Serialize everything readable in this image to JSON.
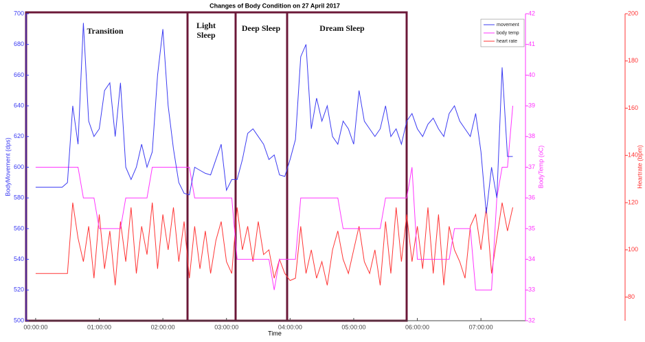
{
  "chart_data": {
    "type": "line",
    "title": "Changes of Body Condition on 27 April 2017",
    "xlabel": "Time",
    "ylabel": "BodyMovement (dps)",
    "y2label": "BodyTemp (oC)",
    "y3label": "Heartrate (bpm)",
    "x": [
      0,
      5,
      10,
      15,
      20,
      25,
      30,
      35,
      40,
      45,
      50,
      55,
      60,
      65,
      70,
      75,
      80,
      85,
      90,
      95,
      100,
      105,
      110,
      115,
      120,
      125,
      130,
      135,
      140,
      145,
      150,
      155,
      160,
      165,
      170,
      175,
      180,
      185,
      190,
      195,
      200,
      205,
      210,
      215,
      220,
      225,
      230,
      235,
      240,
      245,
      250,
      255,
      260,
      265,
      270,
      275,
      280,
      285,
      290,
      295,
      300,
      305,
      310,
      315,
      320,
      325,
      330,
      335,
      340,
      345,
      350,
      355,
      360,
      365,
      370,
      375,
      380,
      385,
      390,
      395,
      400,
      405,
      410,
      415,
      420,
      425,
      430,
      435,
      440,
      445,
      450
    ],
    "xlim": [
      -9,
      462
    ],
    "xticks": [
      {
        "value": 0,
        "label": "00:00:00"
      },
      {
        "value": 60,
        "label": "01:00:00"
      },
      {
        "value": 120,
        "label": "02:00:00"
      },
      {
        "value": 180,
        "label": "03:00:00"
      },
      {
        "value": 240,
        "label": "04:00:00"
      },
      {
        "value": 300,
        "label": "05:00:00"
      },
      {
        "value": 360,
        "label": "06:00:00"
      },
      {
        "value": 420,
        "label": "07:00:00"
      }
    ],
    "ylim": [
      500,
      700
    ],
    "yticks": [
      500,
      520,
      540,
      560,
      580,
      600,
      620,
      640,
      660,
      680,
      700
    ],
    "y2lim": [
      32,
      42
    ],
    "y2ticks": [
      32,
      33,
      34,
      35,
      36,
      37,
      38,
      39,
      40,
      41,
      42
    ],
    "y3lim": [
      70,
      200
    ],
    "y3ticks": [
      80,
      100,
      120,
      140,
      160,
      180,
      200
    ],
    "legend": "upper right",
    "series": [
      {
        "name": "movement",
        "color": "#3a3af2",
        "axis": "y",
        "values": [
          587,
          587,
          587,
          587,
          587,
          587,
          590,
          640,
          615,
          694,
          630,
          620,
          625,
          650,
          655,
          620,
          655,
          600,
          592,
          600,
          615,
          600,
          610,
          660,
          690,
          640,
          612,
          590,
          583,
          582,
          600,
          598,
          596,
          595,
          605,
          615,
          585,
          592,
          592,
          605,
          622,
          625,
          620,
          615,
          605,
          608,
          595,
          594,
          605,
          618,
          672,
          680,
          625,
          645,
          630,
          640,
          620,
          615,
          630,
          625,
          615,
          650,
          630,
          625,
          620,
          625,
          640,
          620,
          625,
          615,
          630,
          635,
          625,
          620,
          628,
          632,
          625,
          620,
          635,
          640,
          630,
          625,
          620,
          635,
          610,
          570,
          600,
          580,
          665,
          607,
          607
        ]
      },
      {
        "name": "body temp",
        "color": "#ff33ff",
        "axis": "y2",
        "values": [
          37,
          37,
          37,
          37,
          37,
          37,
          37,
          37,
          37,
          36,
          36,
          36,
          35,
          35,
          35,
          35,
          35,
          36,
          36,
          36,
          36,
          36,
          37,
          37,
          37,
          37,
          37,
          37,
          37,
          37,
          36,
          36,
          36,
          36,
          36,
          36,
          36,
          36,
          34,
          34,
          34,
          34,
          34,
          34,
          34,
          33,
          34,
          34,
          34,
          34,
          36,
          36,
          36,
          36,
          36,
          36,
          36,
          36,
          35,
          35,
          35,
          35,
          35,
          35,
          35,
          35,
          36,
          36,
          36,
          36,
          36,
          37,
          34,
          34,
          34,
          34,
          34,
          34,
          34,
          35,
          35,
          35,
          35,
          33,
          33,
          33,
          33,
          36,
          37,
          37,
          39
        ]
      },
      {
        "name": "heart rate",
        "color": "#ff3333",
        "axis": "y3",
        "values": [
          90,
          90,
          90,
          90,
          90,
          90,
          90,
          120,
          105,
          95,
          110,
          88,
          115,
          92,
          108,
          85,
          112,
          95,
          118,
          90,
          110,
          98,
          120,
          92,
          115,
          100,
          118,
          95,
          112,
          88,
          110,
          92,
          108,
          90,
          104,
          112,
          95,
          90,
          118,
          100,
          110,
          95,
          112,
          98,
          100,
          88,
          96,
          90,
          87,
          88,
          110,
          90,
          100,
          88,
          95,
          85,
          100,
          108,
          96,
          90,
          100,
          110,
          95,
          90,
          100,
          85,
          112,
          90,
          118,
          95,
          115,
          95,
          110,
          92,
          118,
          90,
          115,
          85,
          110,
          100,
          95,
          88,
          110,
          115,
          100,
          118,
          90,
          105,
          120,
          108,
          118
        ]
      }
    ],
    "annotations": [
      [
        "Transition"
      ],
      [
        "Light",
        "Sleep"
      ],
      [
        "Deep Sleep"
      ],
      [
        "Dream Sleep"
      ]
    ]
  }
}
